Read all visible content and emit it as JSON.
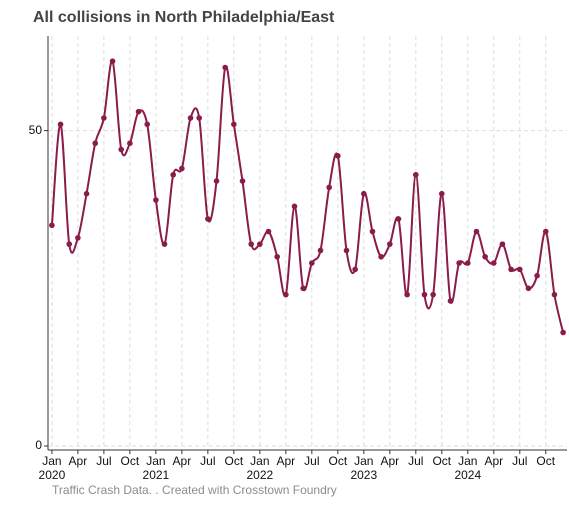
{
  "chart_data": {
    "type": "line",
    "title": "All collisions in North Philadelphia/East",
    "footer": "Traffic Crash Data. . Created with Crosstown Foundry",
    "x": [
      "2020-01",
      "2020-02",
      "2020-03",
      "2020-04",
      "2020-05",
      "2020-06",
      "2020-07",
      "2020-08",
      "2020-09",
      "2020-10",
      "2020-11",
      "2020-12",
      "2021-01",
      "2021-02",
      "2021-03",
      "2021-04",
      "2021-05",
      "2021-06",
      "2021-07",
      "2021-08",
      "2021-09",
      "2021-10",
      "2021-11",
      "2021-12",
      "2022-01",
      "2022-02",
      "2022-03",
      "2022-04",
      "2022-05",
      "2022-06",
      "2022-07",
      "2022-08",
      "2022-09",
      "2022-10",
      "2022-11",
      "2022-12",
      "2023-01",
      "2023-02",
      "2023-03",
      "2023-04",
      "2023-05",
      "2023-06",
      "2023-07",
      "2023-08",
      "2023-09",
      "2023-10",
      "2023-11",
      "2023-12",
      "2024-01",
      "2024-02",
      "2024-03",
      "2024-04",
      "2024-05",
      "2024-06",
      "2024-07",
      "2024-08",
      "2024-09",
      "2024-10",
      "2024-11",
      "2024-12"
    ],
    "series": [
      {
        "name": "All collisions",
        "color": "#8a1c4a",
        "values": [
          35,
          51,
          32,
          33,
          40,
          48,
          52,
          61,
          47,
          48,
          53,
          51,
          39,
          32,
          43,
          44,
          52,
          52,
          36,
          42,
          60,
          51,
          42,
          32,
          32,
          34,
          30,
          24,
          38,
          25,
          29,
          31,
          41,
          46,
          31,
          28,
          40,
          34,
          30,
          32,
          36,
          24,
          43,
          24,
          24,
          40,
          23,
          29,
          29,
          34,
          30,
          29,
          32,
          28,
          28,
          25,
          27,
          34,
          24,
          18
        ]
      }
    ],
    "ylim": [
      0,
      65
    ],
    "yticks": [
      0,
      50
    ],
    "xticks": [
      {
        "value": "2020-01",
        "label": "Jan"
      },
      {
        "value": "2020-04",
        "label": "Apr"
      },
      {
        "value": "2020-07",
        "label": "Jul"
      },
      {
        "value": "2020-10",
        "label": "Oct"
      },
      {
        "value": "2021-01",
        "label": "Jan"
      },
      {
        "value": "2021-04",
        "label": "Apr"
      },
      {
        "value": "2021-07",
        "label": "Jul"
      },
      {
        "value": "2021-10",
        "label": "Oct"
      },
      {
        "value": "2022-01",
        "label": "Jan"
      },
      {
        "value": "2022-04",
        "label": "Apr"
      },
      {
        "value": "2022-07",
        "label": "Jul"
      },
      {
        "value": "2022-10",
        "label": "Oct"
      },
      {
        "value": "2023-01",
        "label": "Jan"
      },
      {
        "value": "2023-04",
        "label": "Apr"
      },
      {
        "value": "2023-07",
        "label": "Jul"
      },
      {
        "value": "2023-10",
        "label": "Oct"
      },
      {
        "value": "2024-01",
        "label": "Jan"
      },
      {
        "value": "2024-04",
        "label": "Apr"
      },
      {
        "value": "2024-07",
        "label": "Jul"
      },
      {
        "value": "2024-10",
        "label": "Oct"
      }
    ],
    "year_labels": [
      {
        "value": "2020-01",
        "label": "2020"
      },
      {
        "value": "2021-01",
        "label": "2021"
      },
      {
        "value": "2022-01",
        "label": "2022"
      },
      {
        "value": "2023-01",
        "label": "2023"
      },
      {
        "value": "2024-01",
        "label": "2024"
      }
    ],
    "grid": true
  }
}
